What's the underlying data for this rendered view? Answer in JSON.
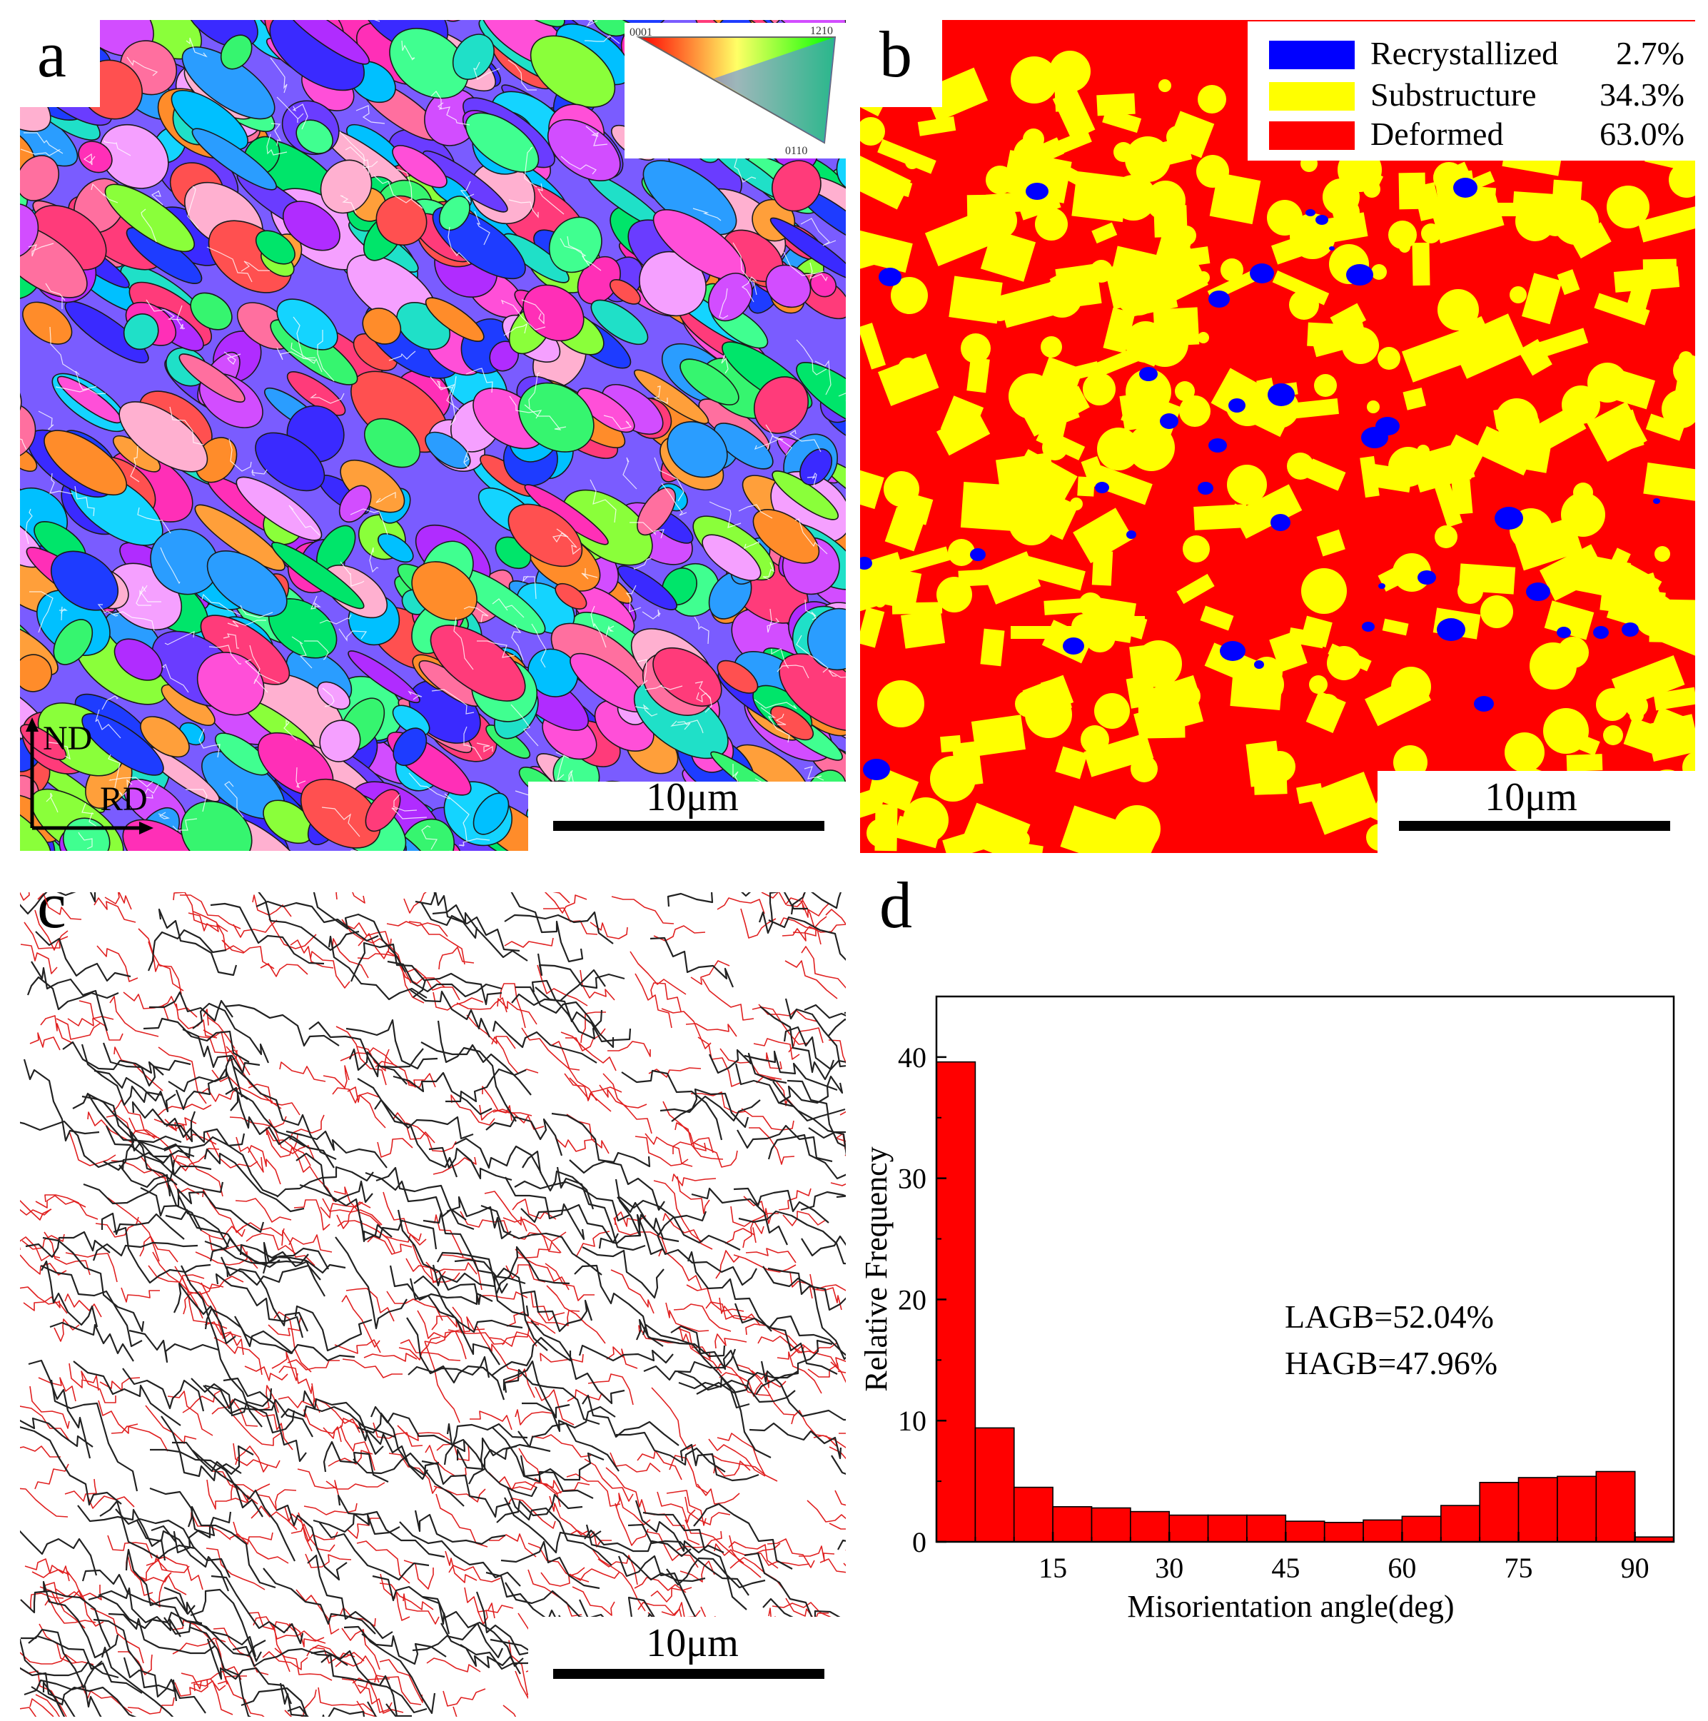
{
  "figure": {
    "panel_a": {
      "letter": "a",
      "scale_label": "10μm",
      "axes_labels": {
        "nd": "ND",
        "rd": "RD"
      },
      "ipf_key": {
        "top_left": "0001",
        "top_right": "1210",
        "bottom": "0110"
      }
    },
    "panel_b": {
      "letter": "b",
      "scale_label": "10μm",
      "legend": [
        {
          "label": "Recrystallized",
          "percent": "2.7%",
          "color": "#0000ff"
        },
        {
          "label": "Substructure",
          "percent": "34.3%",
          "color": "#ffff00"
        },
        {
          "label": "Deformed",
          "percent": "63.0%",
          "color": "#ff0000"
        }
      ]
    },
    "panel_c": {
      "letter": "c",
      "scale_label": "10μm",
      "colors": {
        "hagb": "#222222",
        "lagb": "#e02020"
      }
    },
    "panel_d": {
      "letter": "d",
      "annotation": [
        "LAGB=52.04%",
        "HAGB=47.96%"
      ]
    }
  },
  "chart_data": {
    "type": "bar",
    "xlabel": "Misorientation angle(deg)",
    "ylabel": "Relative Frequency",
    "xlim": [
      0,
      95
    ],
    "ylim": [
      0,
      45
    ],
    "xticks": [
      15,
      30,
      45,
      60,
      75,
      90
    ],
    "yticks": [
      0,
      10,
      20,
      30,
      40
    ],
    "bin_width": 5,
    "bin_starts": [
      0,
      5,
      10,
      15,
      20,
      25,
      30,
      35,
      40,
      45,
      50,
      55,
      60,
      65,
      70,
      75,
      80,
      85,
      90
    ],
    "values": [
      39.6,
      9.4,
      4.5,
      2.9,
      2.8,
      2.5,
      2.2,
      2.2,
      2.2,
      1.7,
      1.6,
      1.8,
      2.1,
      3.0,
      4.9,
      5.3,
      5.4,
      5.8,
      0.4
    ],
    "bar_color": "#ff0000"
  }
}
